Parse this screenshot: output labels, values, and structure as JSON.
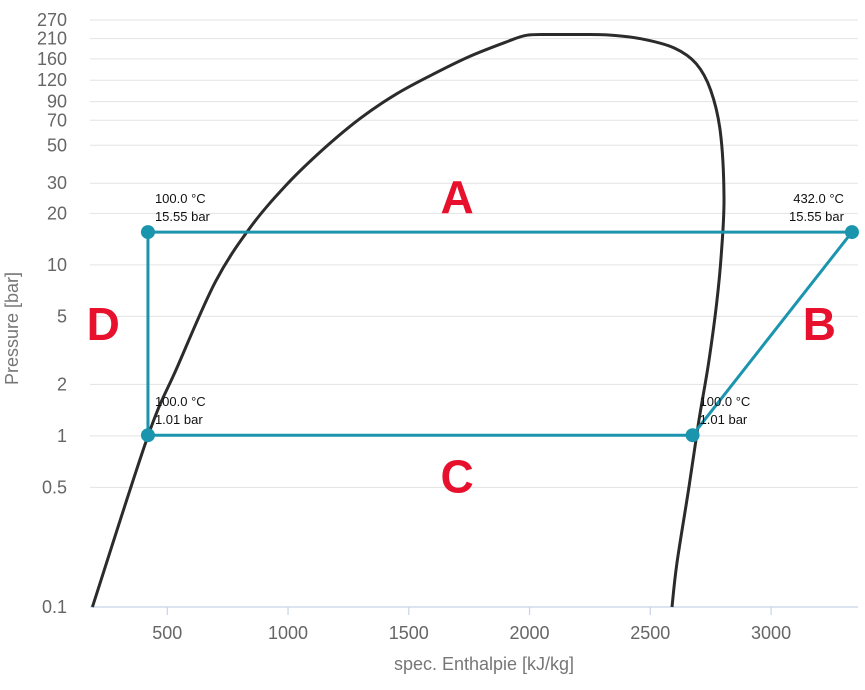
{
  "chart_data": {
    "type": "line",
    "title": "",
    "xlabel": "spec. Enthalpie [kJ/kg]",
    "ylabel": "Pressure [bar]",
    "x_scale": "linear",
    "y_scale": "log",
    "xlim": [
      180,
      3360
    ],
    "ylim": [
      0.1,
      270
    ],
    "x_ticks": [
      500,
      1000,
      1500,
      2000,
      2500,
      3000
    ],
    "y_ticks": [
      0.1,
      0.5,
      1,
      2,
      5,
      10,
      20,
      30,
      50,
      70,
      90,
      120,
      160,
      210,
      270
    ],
    "grid": true,
    "legend": "none",
    "colors": {
      "cycle": "#1a95ad",
      "dome": "#2b2b2b",
      "region_labels": "#e8112d"
    },
    "dome": {
      "x": [
        190,
        420,
        540,
        700,
        850,
        1000,
        1150,
        1300,
        1450,
        1600,
        1750,
        1900,
        1990,
        2100,
        2200,
        2320,
        2460,
        2600,
        2690,
        2750,
        2790,
        2805,
        2795,
        2775,
        2740,
        2700,
        2660,
        2610,
        2590
      ],
      "y": [
        0.1,
        1,
        2.5,
        8,
        17,
        30,
        48,
        72,
        100,
        130,
        165,
        200,
        220,
        222,
        222,
        221,
        210,
        185,
        150,
        105,
        60,
        25,
        12,
        6,
        2.6,
        1.2,
        0.5,
        0.18,
        0.1
      ]
    },
    "cycle": [
      {
        "name": "",
        "x": [
          420,
          3335
        ],
        "y": [
          15.55,
          15.55
        ]
      },
      {
        "name": "",
        "x": [
          3335,
          2675
        ],
        "y": [
          15.55,
          1.01
        ]
      },
      {
        "name": "",
        "x": [
          2675,
          420
        ],
        "y": [
          1.01,
          1.01
        ]
      },
      {
        "name": "",
        "x": [
          420,
          420
        ],
        "y": [
          1.01,
          15.55
        ]
      }
    ],
    "points": [
      {
        "x": 420,
        "y": 15.55,
        "label1": "100.0 °C",
        "label2": "15.55 bar",
        "align": "start"
      },
      {
        "x": 3335,
        "y": 15.55,
        "label1": "432.0 °C",
        "label2": "15.55 bar",
        "align": "end"
      },
      {
        "x": 420,
        "y": 1.01,
        "label1": "100.0 °C",
        "label2": "1.01 bar",
        "align": "start"
      },
      {
        "x": 2675,
        "y": 1.01,
        "label1": "100.0 °C",
        "label2": "1.01 bar",
        "align": "start"
      }
    ],
    "region_labels": [
      {
        "text": "A",
        "x": 1700,
        "y": 25
      },
      {
        "text": "B",
        "x": 3200,
        "y": 4.5
      },
      {
        "text": "C",
        "x": 1700,
        "y": 0.58
      },
      {
        "text": "D",
        "x": 235,
        "y": 4.5
      }
    ]
  }
}
